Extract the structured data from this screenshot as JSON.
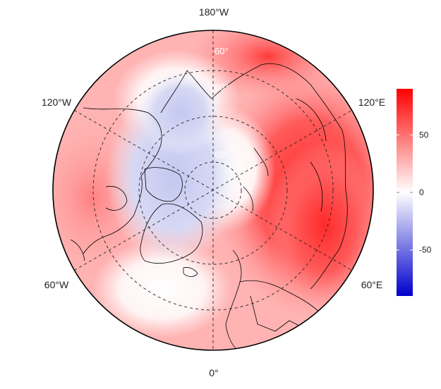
{
  "map": {
    "projection": "north-polar-stereographic",
    "longitude_labels": [
      "180°W",
      "120°W",
      "120°E",
      "60°W",
      "60°E",
      "0°"
    ],
    "latitude_labels": [
      "60°",
      "60°",
      "60°"
    ],
    "gridlines": "dashed",
    "colors": {
      "negative": "#0000cc",
      "zero": "#ffffff",
      "positive": "#ff0000",
      "coastline": "#000000"
    }
  },
  "colorbar": {
    "range": [
      -90,
      90
    ],
    "ticks": [
      {
        "value": 50,
        "label": "50"
      },
      {
        "value": 0,
        "label": "0"
      },
      {
        "value": -50,
        "label": "-50"
      }
    ]
  }
}
